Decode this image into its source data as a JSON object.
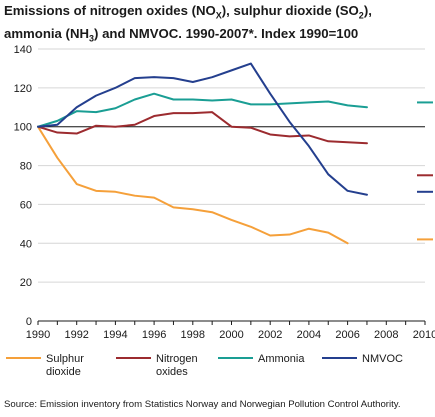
{
  "chart_data": {
    "type": "line",
    "title_parts": {
      "line1_a": "Emissions of nitrogen oxides (NO",
      "line1_sub1": "X",
      "line1_b": "), sulphur dioxide (SO",
      "line1_sub2": "2",
      "line1_c": "),",
      "line2_a": "ammonia (NH",
      "line2_sub": "3",
      "line2_b": ") and NMVOC. 1990-2007*. Index 1990=100"
    },
    "x_ticks": [
      "1990",
      "1992",
      "1994",
      "1996",
      "1998",
      "2000",
      "2002",
      "2004",
      "2006",
      "2008",
      "2010"
    ],
    "y_ticks": [
      "0",
      "20",
      "40",
      "60",
      "80",
      "100",
      "120",
      "140"
    ],
    "xlim": [
      1990,
      2010
    ],
    "ylim": [
      0,
      140
    ],
    "reference_line": 100,
    "grid": "horizontal",
    "legend_position": "bottom",
    "series": [
      {
        "name": "Sulphur dioxide",
        "name_lines": [
          "Sulphur",
          "dioxide"
        ],
        "color": "#f5a03a",
        "x": [
          1990,
          1991,
          1992,
          1993,
          1994,
          1995,
          1996,
          1997,
          1998,
          1999,
          2000,
          2001,
          2002,
          2003,
          2004,
          2005,
          2006
        ],
        "values": [
          100,
          84,
          70.5,
          67,
          66.5,
          64.5,
          63.5,
          58.5,
          57.5,
          56,
          52,
          48.5,
          44,
          44.5,
          47.5,
          45.5,
          40
        ],
        "target_2010": 42
      },
      {
        "name": "Nitrogen oxides",
        "name_lines": [
          "Nitrogen",
          "oxides"
        ],
        "color": "#9c2b2f",
        "x": [
          1990,
          1991,
          1992,
          1993,
          1994,
          1995,
          1996,
          1997,
          1998,
          1999,
          2000,
          2001,
          2002,
          2003,
          2004,
          2005,
          2006,
          2007
        ],
        "values": [
          100,
          97,
          96.5,
          100.5,
          100,
          101,
          105.5,
          107,
          107,
          107.5,
          100,
          99.5,
          96,
          95,
          95.5,
          92.5,
          92,
          91.5
        ],
        "target_2010": 75
      },
      {
        "name": "Ammonia",
        "name_lines": [
          "Ammonia"
        ],
        "color": "#1a9e94",
        "x": [
          1990,
          1991,
          1992,
          1993,
          1994,
          1995,
          1996,
          1997,
          1998,
          1999,
          2000,
          2001,
          2002,
          2003,
          2004,
          2005,
          2006,
          2007
        ],
        "values": [
          100,
          103,
          108,
          107.5,
          109.5,
          114,
          117,
          114,
          114,
          113.5,
          114,
          111.5,
          111.5,
          112,
          112.5,
          113,
          111,
          110
        ],
        "target_2010": 112.5
      },
      {
        "name": "NMVOC",
        "name_lines": [
          "NMVOC"
        ],
        "color": "#243f8e",
        "x": [
          1990,
          1991,
          1992,
          1993,
          1994,
          1995,
          1996,
          1997,
          1998,
          1999,
          2000,
          2001,
          2002,
          2003,
          2004,
          2005,
          2006,
          2007
        ],
        "values": [
          100,
          101,
          110,
          116,
          120,
          125,
          125.5,
          125,
          123,
          125.5,
          129,
          132.5,
          117,
          102.5,
          90,
          75.5,
          67,
          65
        ],
        "target_2010": 66.5
      }
    ]
  },
  "source": "Source: Emission inventory from Statistics Norway and Norwegian Pollution Control Authority."
}
